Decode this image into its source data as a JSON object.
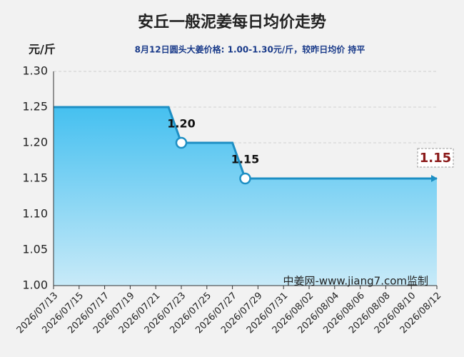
{
  "chart_data": {
    "type": "area",
    "title": "安丘一般泥姜每日均价走势",
    "y_unit": "元/斤",
    "subtitle": "8月12日圆头大姜价格: 1.00-1.30元/斤，较昨日均价 持平",
    "annotation": "中姜网-www.jiang7.com监制",
    "categories": [
      "2026/07/13",
      null,
      "2026/07/15",
      null,
      "2026/07/17",
      null,
      "2026/07/19",
      null,
      "2026/07/21",
      null,
      "2026/07/23",
      null,
      "2026/07/25",
      null,
      "2026/07/27",
      null,
      "2026/07/29",
      null,
      "2026/07/31",
      null,
      "2026/08/02",
      null,
      "2026/08/04",
      null,
      "2026/08/06",
      null,
      "2026/08/08",
      null,
      "2026/08/10",
      null,
      "2026/08/12"
    ],
    "values": [
      1.25,
      1.25,
      1.25,
      1.25,
      1.25,
      1.25,
      1.25,
      1.25,
      1.25,
      1.25,
      1.2,
      1.2,
      1.2,
      1.2,
      1.2,
      1.15,
      1.15,
      1.15,
      1.15,
      1.15,
      1.15,
      1.15,
      1.15,
      1.15,
      1.15,
      1.15,
      1.15,
      1.15,
      1.15,
      1.15,
      1.15
    ],
    "value_labels": [
      null,
      null,
      null,
      null,
      null,
      null,
      null,
      null,
      null,
      null,
      "1.20",
      null,
      null,
      null,
      null,
      "1.15",
      null,
      null,
      null,
      null,
      null,
      null,
      null,
      null,
      null,
      null,
      null,
      null,
      null,
      null,
      "1.15"
    ],
    "color": "#1e8fc4",
    "ylim": [
      1.0,
      1.3
    ],
    "yticks": [
      {
        "value": 1.0,
        "label": "1.00"
      },
      {
        "value": 1.05,
        "label": "1.05"
      },
      {
        "value": 1.1,
        "label": "1.10"
      },
      {
        "value": 1.15,
        "label": "1.15"
      },
      {
        "value": 1.2,
        "label": "1.20"
      },
      {
        "value": 1.25,
        "label": "1.25"
      },
      {
        "value": 1.3,
        "label": "1.30"
      }
    ],
    "grid": true
  }
}
